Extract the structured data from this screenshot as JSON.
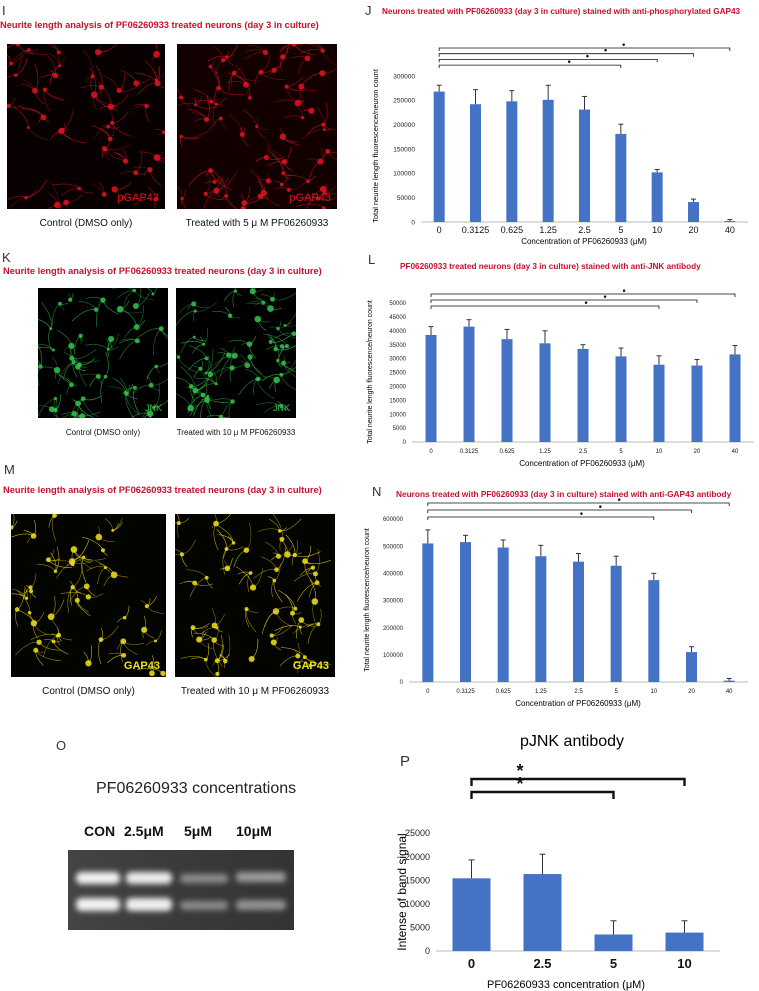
{
  "panels": {
    "I": {
      "letter": "I",
      "title": "Neurite length analysis of PF06260933 treated neurons (day 3 in culture)",
      "left_caption": "Control (DMSO only)",
      "right_caption": "Treated with 5 μ M PF06260933",
      "stain": "pGAP43",
      "color": "#e0141f"
    },
    "K": {
      "letter": "K",
      "title": "Neurite length analysis of PF06260933 treated neurons (day 3 in culture)",
      "left_caption": "Control (DMSO only)",
      "right_caption": "Treated with 10 μ M PF06260933",
      "stain": "JNK",
      "color": "#34c34a"
    },
    "M": {
      "letter": "M",
      "title": "Neurite length analysis of PF06260933 treated neurons (day 3 in culture)",
      "left_caption": "Control (DMSO only)",
      "right_caption": "Treated with 10 μ M PF06260933",
      "stain": "GAP43",
      "color": "#f2e21a"
    },
    "O": {
      "letter": "O",
      "title": "PF06260933 concentrations",
      "lanes": [
        "CON",
        "2.5μM",
        "5μM",
        "10μM"
      ]
    }
  },
  "colors": {
    "bar": "#4472c4",
    "title_red": "#c8102e"
  },
  "chart_data": [
    {
      "letter": "J",
      "type": "bar",
      "title": "Neurons treated with PF06260933 (day 3 in culture) stained with anti-phosphorylated GAP43",
      "xlabel": "Concentration of PF06260933 (μM)",
      "ylabel": "Total neurite length fluorescence/neuron count",
      "categories": [
        "0",
        "0.3125",
        "0.625",
        "1.25",
        "2.5",
        "5",
        "10",
        "20",
        "40"
      ],
      "values": [
        268000,
        242000,
        248000,
        251000,
        231000,
        181000,
        102000,
        41000,
        2000
      ],
      "errors": [
        13000,
        30000,
        22000,
        30000,
        27000,
        20000,
        6000,
        6000,
        3000
      ],
      "ylim": [
        0,
        300000
      ],
      "yticks": [
        0,
        50000,
        100000,
        150000,
        200000,
        250000,
        300000
      ],
      "sig_marker": "•",
      "sig_brackets": [
        "5",
        "10",
        "20",
        "40"
      ]
    },
    {
      "letter": "L",
      "type": "bar",
      "title": "PF06260933 treated neurons (day 3 in culture) stained with anti-JNK antibody",
      "xlabel": "Concentration of PF06260933 (μM)",
      "ylabel": "Total neurite length fluorescence/neuron count",
      "categories": [
        "0",
        "0.3125",
        "0.625",
        "1.25",
        "2.5",
        "5",
        "10",
        "20",
        "40"
      ],
      "values": [
        38500,
        41500,
        37000,
        35500,
        33500,
        30800,
        27800,
        27500,
        31500
      ],
      "errors": [
        3000,
        2500,
        3500,
        4500,
        1500,
        3000,
        3200,
        2200,
        3200
      ],
      "ylim": [
        0,
        50000
      ],
      "yticks": [
        0,
        5000,
        10000,
        15000,
        20000,
        25000,
        30000,
        35000,
        40000,
        45000,
        50000
      ],
      "sig_marker": "•",
      "sig_brackets": [
        "10",
        "20",
        "40"
      ]
    },
    {
      "letter": "N",
      "type": "bar",
      "title": "Neurons treated with PF06260933 (day 3 in culture) stained with anti-GAP43 antibody",
      "xlabel": "Concentration of PF06260933 (μM)",
      "ylabel": "Total neurite length fluorescence/neuron count",
      "categories": [
        "0",
        "0.3125",
        "0.625",
        "1.25",
        "2.5",
        "5",
        "10",
        "20",
        "40"
      ],
      "values": [
        510000,
        515000,
        495000,
        463000,
        443000,
        428000,
        375000,
        110000,
        5000
      ],
      "errors": [
        50000,
        25000,
        28000,
        40000,
        30000,
        35000,
        25000,
        20000,
        8000
      ],
      "ylim": [
        0,
        600000
      ],
      "yticks": [
        0,
        100000,
        200000,
        300000,
        400000,
        500000,
        600000
      ],
      "sig_marker": "•",
      "sig_brackets": [
        "10",
        "20",
        "40"
      ]
    },
    {
      "letter": "P",
      "type": "bar",
      "title": "pJNK antibody",
      "xlabel": "PF06260933 concentration (μM)",
      "ylabel": "Intense of band signal",
      "categories": [
        "0",
        "2.5",
        "5",
        "10"
      ],
      "values": [
        15400,
        16300,
        3500,
        3900
      ],
      "errors": [
        3900,
        4200,
        2900,
        2500
      ],
      "ylim": [
        0,
        25000
      ],
      "yticks": [
        0,
        5000,
        10000,
        15000,
        20000,
        25000
      ],
      "sig_marker": "*",
      "sig_brackets": [
        "5",
        "10"
      ]
    }
  ]
}
